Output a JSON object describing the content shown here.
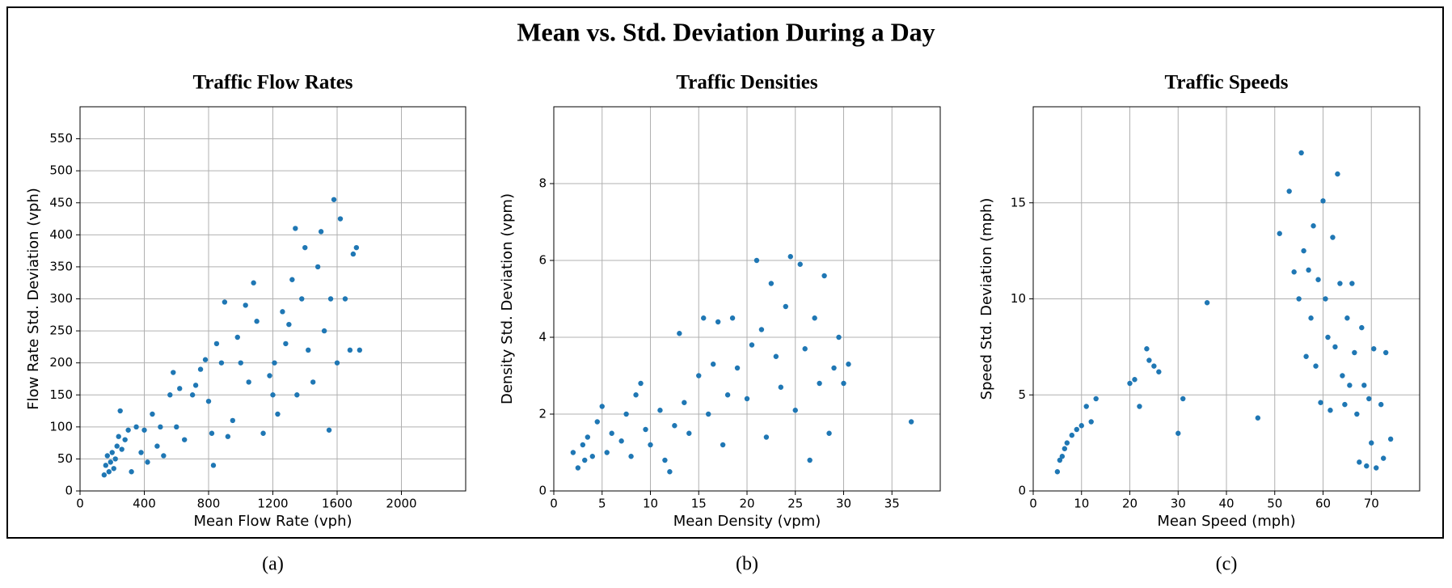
{
  "title": "Mean vs. Std. Deviation During a Day",
  "chart_data": [
    {
      "type": "scatter",
      "title": "Traffic Flow Rates",
      "xlabel": "Mean Flow Rate (vph)",
      "ylabel": "Flow Rate Std. Deviation (vph)",
      "caption": "(a)",
      "color": "#1f77b4",
      "grid": true,
      "xlim": [
        0,
        2400
      ],
      "ylim": [
        0,
        600
      ],
      "xticks": [
        0,
        400,
        800,
        1200,
        1600,
        2000
      ],
      "yticks": [
        0,
        50,
        100,
        150,
        200,
        250,
        300,
        350,
        400,
        450,
        500,
        550
      ],
      "x": [
        150,
        160,
        170,
        180,
        190,
        200,
        210,
        220,
        230,
        240,
        250,
        260,
        280,
        300,
        320,
        350,
        380,
        400,
        420,
        450,
        480,
        500,
        520,
        560,
        580,
        600,
        620,
        650,
        700,
        720,
        750,
        780,
        800,
        820,
        830,
        850,
        880,
        900,
        920,
        950,
        980,
        1000,
        1030,
        1050,
        1080,
        1100,
        1140,
        1180,
        1200,
        1210,
        1230,
        1260,
        1280,
        1300,
        1320,
        1340,
        1350,
        1380,
        1400,
        1420,
        1450,
        1480,
        1500,
        1520,
        1550,
        1560,
        1580,
        1600,
        1620,
        1650,
        1680,
        1700,
        1720,
        1740
      ],
      "values": [
        25,
        40,
        55,
        30,
        45,
        60,
        35,
        50,
        70,
        85,
        125,
        65,
        80,
        95,
        30,
        100,
        60,
        95,
        45,
        120,
        70,
        100,
        55,
        150,
        185,
        100,
        160,
        80,
        150,
        165,
        190,
        205,
        140,
        90,
        40,
        230,
        200,
        295,
        85,
        110,
        240,
        200,
        290,
        170,
        325,
        265,
        90,
        180,
        150,
        200,
        120,
        280,
        230,
        260,
        330,
        410,
        150,
        300,
        380,
        220,
        170,
        350,
        405,
        250,
        95,
        300,
        455,
        200,
        425,
        300,
        220,
        370,
        380,
        220
      ]
    },
    {
      "type": "scatter",
      "title": "Traffic Densities",
      "xlabel": "Mean Density (vpm)",
      "ylabel": "Density Std. Deviation (vpm)",
      "caption": "(b)",
      "color": "#1f77b4",
      "grid": true,
      "xlim": [
        0,
        40
      ],
      "ylim": [
        0,
        10
      ],
      "xticks": [
        0,
        5,
        10,
        15,
        20,
        25,
        30,
        35
      ],
      "yticks": [
        0,
        2,
        4,
        6,
        8
      ],
      "x": [
        2,
        2.5,
        3,
        3.2,
        3.5,
        4,
        4.5,
        5,
        5.5,
        6,
        7,
        7.5,
        8,
        8.5,
        9,
        9.5,
        10,
        11,
        11.5,
        12,
        12.5,
        13,
        13.5,
        14,
        15,
        15.5,
        16,
        16.5,
        17,
        17.5,
        18,
        18.5,
        19,
        20,
        20.5,
        21,
        21.5,
        22,
        22.5,
        23,
        23.5,
        24,
        24.5,
        25,
        25.5,
        26,
        26.5,
        27,
        27.5,
        28,
        28.5,
        29,
        29.5,
        30,
        30.5,
        37
      ],
      "values": [
        1,
        0.6,
        1.2,
        0.8,
        1.4,
        0.9,
        1.8,
        2.2,
        1.0,
        1.5,
        1.3,
        2.0,
        0.9,
        2.5,
        2.8,
        1.6,
        1.2,
        2.1,
        0.8,
        0.5,
        1.7,
        4.1,
        2.3,
        1.5,
        3.0,
        4.5,
        2.0,
        3.3,
        4.4,
        1.2,
        2.5,
        4.5,
        3.2,
        2.4,
        3.8,
        6.0,
        4.2,
        1.4,
        5.4,
        3.5,
        2.7,
        4.8,
        6.1,
        2.1,
        5.9,
        3.7,
        0.8,
        4.5,
        2.8,
        5.6,
        1.5,
        3.2,
        4.0,
        2.8,
        3.3,
        1.8
      ]
    },
    {
      "type": "scatter",
      "title": "Traffic Speeds",
      "xlabel": "Mean Speed (mph)",
      "ylabel": "Speed Std. Deviation (mph)",
      "caption": "(c)",
      "color": "#1f77b4",
      "grid": true,
      "xlim": [
        0,
        80
      ],
      "ylim": [
        0,
        20
      ],
      "xticks": [
        0,
        10,
        20,
        30,
        40,
        50,
        60,
        70
      ],
      "yticks": [
        0,
        5,
        10,
        15
      ],
      "x": [
        5,
        5.5,
        6,
        6.5,
        7,
        8,
        9,
        10,
        11,
        12,
        13,
        20,
        21,
        22,
        23.5,
        24,
        25,
        26,
        30,
        31,
        36,
        46.5,
        51,
        53,
        54,
        55,
        55.5,
        56,
        56.5,
        57,
        57.5,
        58,
        58.5,
        59,
        59.5,
        60,
        60.5,
        61,
        61.5,
        62,
        62.5,
        63,
        63.5,
        64,
        64.5,
        65,
        65.5,
        66,
        66.5,
        67,
        67.5,
        68,
        68.5,
        69,
        69.5,
        70,
        70.5,
        71,
        72,
        72.5,
        73,
        74
      ],
      "values": [
        1.0,
        1.6,
        1.8,
        2.2,
        2.5,
        2.9,
        3.2,
        3.4,
        4.4,
        3.6,
        4.8,
        5.6,
        5.8,
        4.4,
        7.4,
        6.8,
        6.5,
        6.2,
        3.0,
        4.8,
        9.8,
        3.8,
        13.4,
        15.6,
        11.4,
        10.0,
        17.6,
        12.5,
        7.0,
        11.5,
        9.0,
        13.8,
        6.5,
        11.0,
        4.6,
        15.1,
        10.0,
        8.0,
        4.2,
        13.2,
        7.5,
        16.5,
        10.8,
        6.0,
        4.5,
        9.0,
        5.5,
        10.8,
        7.2,
        4.0,
        1.5,
        8.5,
        5.5,
        1.3,
        4.8,
        2.5,
        7.4,
        1.2,
        4.5,
        1.7,
        7.2,
        2.7
      ]
    }
  ]
}
